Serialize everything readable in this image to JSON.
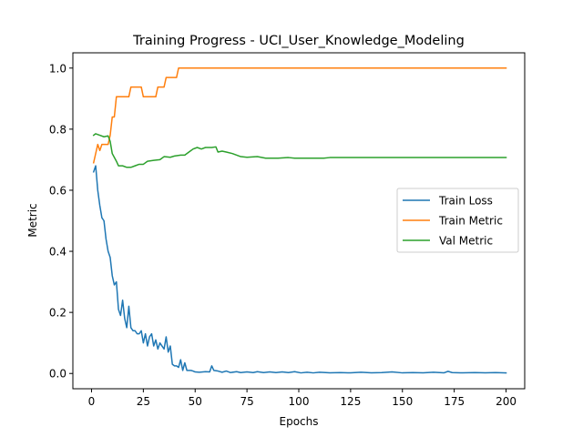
{
  "chart_data": {
    "type": "line",
    "title": "Training Progress - UCI_User_Knowledge_Modeling",
    "xlabel": "Epochs",
    "ylabel": "Metric",
    "xlim": [
      -9,
      209
    ],
    "ylim": [
      -0.05,
      1.05
    ],
    "xticks": [
      0,
      25,
      50,
      75,
      100,
      125,
      150,
      175,
      200
    ],
    "yticks": [
      0.0,
      0.2,
      0.4,
      0.6,
      0.8,
      1.0
    ],
    "grid": false,
    "legend_position": "center-right",
    "series": [
      {
        "name": "Train Loss",
        "color": "#1f77b4",
        "points": [
          [
            1,
            0.66
          ],
          [
            2,
            0.68
          ],
          [
            3,
            0.6
          ],
          [
            4,
            0.55
          ],
          [
            5,
            0.51
          ],
          [
            6,
            0.5
          ],
          [
            7,
            0.44
          ],
          [
            8,
            0.4
          ],
          [
            9,
            0.38
          ],
          [
            10,
            0.32
          ],
          [
            11,
            0.29
          ],
          [
            12,
            0.3
          ],
          [
            13,
            0.21
          ],
          [
            14,
            0.19
          ],
          [
            15,
            0.24
          ],
          [
            16,
            0.18
          ],
          [
            17,
            0.15
          ],
          [
            18,
            0.22
          ],
          [
            19,
            0.15
          ],
          [
            20,
            0.14
          ],
          [
            21,
            0.14
          ],
          [
            22,
            0.13
          ],
          [
            23,
            0.13
          ],
          [
            24,
            0.14
          ],
          [
            25,
            0.1
          ],
          [
            26,
            0.13
          ],
          [
            27,
            0.09
          ],
          [
            28,
            0.12
          ],
          [
            29,
            0.13
          ],
          [
            30,
            0.09
          ],
          [
            31,
            0.11
          ],
          [
            32,
            0.08
          ],
          [
            33,
            0.1
          ],
          [
            34,
            0.09
          ],
          [
            35,
            0.08
          ],
          [
            36,
            0.12
          ],
          [
            37,
            0.07
          ],
          [
            38,
            0.09
          ],
          [
            39,
            0.03
          ],
          [
            40,
            0.025
          ],
          [
            41,
            0.025
          ],
          [
            42,
            0.02
          ],
          [
            43,
            0.045
          ],
          [
            44,
            0.01
          ],
          [
            45,
            0.035
          ],
          [
            46,
            0.01
          ],
          [
            47,
            0.01
          ],
          [
            48,
            0.01
          ],
          [
            49,
            0.008
          ],
          [
            50,
            0.005
          ],
          [
            52,
            0.004
          ],
          [
            55,
            0.006
          ],
          [
            57,
            0.005
          ],
          [
            58,
            0.025
          ],
          [
            59,
            0.01
          ],
          [
            61,
            0.008
          ],
          [
            63,
            0.004
          ],
          [
            65,
            0.008
          ],
          [
            67,
            0.003
          ],
          [
            70,
            0.006
          ],
          [
            72,
            0.003
          ],
          [
            75,
            0.005
          ],
          [
            78,
            0.003
          ],
          [
            80,
            0.006
          ],
          [
            83,
            0.003
          ],
          [
            86,
            0.005
          ],
          [
            89,
            0.003
          ],
          [
            92,
            0.005
          ],
          [
            95,
            0.003
          ],
          [
            98,
            0.006
          ],
          [
            101,
            0.002
          ],
          [
            104,
            0.004
          ],
          [
            107,
            0.002
          ],
          [
            110,
            0.004
          ],
          [
            115,
            0.002
          ],
          [
            120,
            0.003
          ],
          [
            125,
            0.002
          ],
          [
            130,
            0.004
          ],
          [
            135,
            0.002
          ],
          [
            140,
            0.003
          ],
          [
            145,
            0.005
          ],
          [
            150,
            0.002
          ],
          [
            155,
            0.003
          ],
          [
            160,
            0.002
          ],
          [
            165,
            0.004
          ],
          [
            170,
            0.002
          ],
          [
            172,
            0.007
          ],
          [
            174,
            0.003
          ],
          [
            178,
            0.002
          ],
          [
            185,
            0.003
          ],
          [
            190,
            0.002
          ],
          [
            195,
            0.003
          ],
          [
            200,
            0.002
          ]
        ]
      },
      {
        "name": "Train Metric",
        "color": "#ff7f0e",
        "points": [
          [
            1,
            0.69
          ],
          [
            3,
            0.75
          ],
          [
            4,
            0.73
          ],
          [
            5,
            0.75
          ],
          [
            8,
            0.75
          ],
          [
            9,
            0.78
          ],
          [
            10,
            0.84
          ],
          [
            11,
            0.84
          ],
          [
            12,
            0.906
          ],
          [
            18,
            0.906
          ],
          [
            19,
            0.938
          ],
          [
            24,
            0.938
          ],
          [
            25,
            0.906
          ],
          [
            31,
            0.906
          ],
          [
            32,
            0.938
          ],
          [
            35,
            0.938
          ],
          [
            36,
            0.969
          ],
          [
            41,
            0.969
          ],
          [
            42,
            1.0
          ],
          [
            200,
            1.0
          ]
        ]
      },
      {
        "name": "Val Metric",
        "color": "#2ca02c",
        "points": [
          [
            1,
            0.78
          ],
          [
            2,
            0.785
          ],
          [
            4,
            0.78
          ],
          [
            6,
            0.775
          ],
          [
            8,
            0.778
          ],
          [
            9,
            0.76
          ],
          [
            10,
            0.72
          ],
          [
            12,
            0.695
          ],
          [
            13,
            0.68
          ],
          [
            15,
            0.68
          ],
          [
            17,
            0.675
          ],
          [
            19,
            0.675
          ],
          [
            21,
            0.68
          ],
          [
            23,
            0.685
          ],
          [
            25,
            0.685
          ],
          [
            27,
            0.695
          ],
          [
            30,
            0.698
          ],
          [
            33,
            0.7
          ],
          [
            35,
            0.71
          ],
          [
            38,
            0.708
          ],
          [
            40,
            0.712
          ],
          [
            43,
            0.715
          ],
          [
            45,
            0.715
          ],
          [
            47,
            0.725
          ],
          [
            49,
            0.735
          ],
          [
            51,
            0.74
          ],
          [
            53,
            0.735
          ],
          [
            55,
            0.74
          ],
          [
            58,
            0.74
          ],
          [
            60,
            0.742
          ],
          [
            61,
            0.725
          ],
          [
            63,
            0.728
          ],
          [
            65,
            0.725
          ],
          [
            68,
            0.72
          ],
          [
            72,
            0.71
          ],
          [
            75,
            0.708
          ],
          [
            80,
            0.71
          ],
          [
            84,
            0.705
          ],
          [
            90,
            0.705
          ],
          [
            95,
            0.707
          ],
          [
            98,
            0.705
          ],
          [
            105,
            0.705
          ],
          [
            112,
            0.705
          ],
          [
            115,
            0.707
          ],
          [
            130,
            0.707
          ],
          [
            150,
            0.707
          ],
          [
            175,
            0.707
          ],
          [
            200,
            0.707
          ]
        ]
      }
    ]
  }
}
